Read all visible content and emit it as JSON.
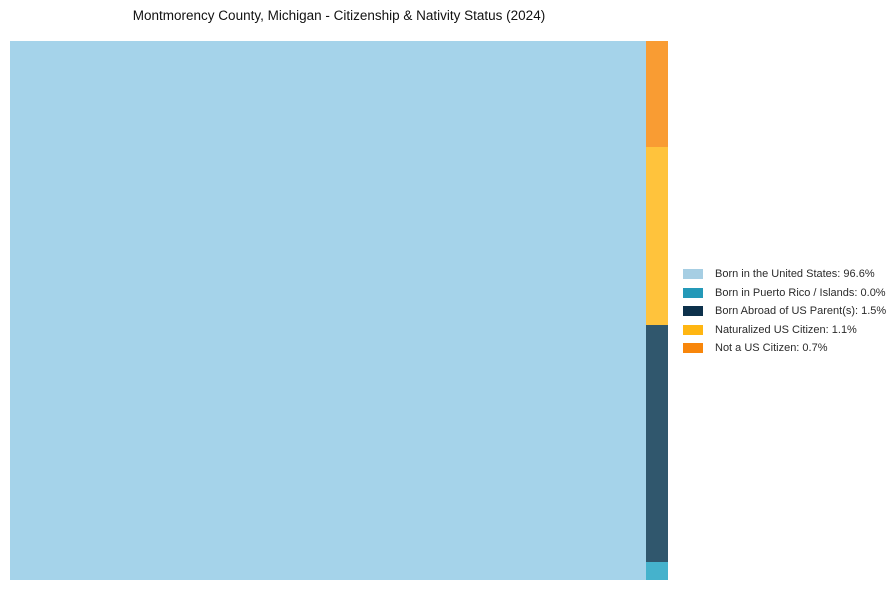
{
  "title": "Montmorency County, Michigan - Citizenship & Nativity Status (2024)",
  "chart_data": {
    "type": "treemap",
    "title": "Montmorency County, Michigan - Citizenship & Nativity Status (2024)",
    "unit": "percent",
    "legend_position": "right",
    "series": [
      {
        "name": "Born in the United States",
        "value": 96.6
      },
      {
        "name": "Born in Puerto Rico / Islands",
        "value": 0.0
      },
      {
        "name": "Born Abroad of US Parent(s)",
        "value": 1.5
      },
      {
        "name": "Naturalized US Citizen",
        "value": 1.1
      },
      {
        "name": "Not a US Citizen",
        "value": 0.7
      }
    ],
    "layout_note": "Single large tile for 96.6% on left; remaining categories stacked top-to-bottom in a narrow right column: Not a US Citizen, Naturalized US Citizen, Born Abroad of US Parent(s), Born in Puerto Rico / Islands"
  },
  "tiles": [
    {
      "name": "born-in-us",
      "color": "#A5D3EA"
    },
    {
      "name": "born-puerto-rico",
      "color": "#45B2CC"
    },
    {
      "name": "born-abroad",
      "color": "#30576D"
    },
    {
      "name": "naturalized",
      "color": "#FFC33C"
    },
    {
      "name": "not-citizen",
      "color": "#F99C33"
    }
  ],
  "legend": {
    "items": [
      {
        "text": "Born in the United States: 96.6%",
        "color": "#A6CEE3"
      },
      {
        "text": "Born in Puerto Rico / Islands: 0.0%",
        "color": "#2499B8"
      },
      {
        "text": "Born Abroad of US Parent(s): 1.5%",
        "color": "#0D314B"
      },
      {
        "text": "Naturalized US Citizen: 1.1%",
        "color": "#FFB612"
      },
      {
        "text": "Not a US Citizen: 0.7%",
        "color": "#F8860B"
      }
    ]
  }
}
